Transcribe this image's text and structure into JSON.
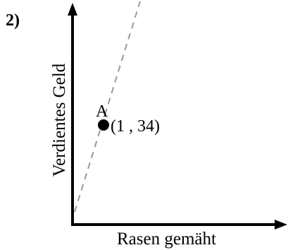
{
  "problem_number": "2)",
  "axes": {
    "x_label": "Rasen gemäht",
    "y_label": "Verdientes Geld",
    "color": "#000000"
  },
  "point": {
    "name": "A",
    "x": 1,
    "y": 34,
    "label": "(1 , 34)",
    "color": "#000000"
  },
  "reference_line": {
    "style": "dashed",
    "color": "#999999"
  }
}
